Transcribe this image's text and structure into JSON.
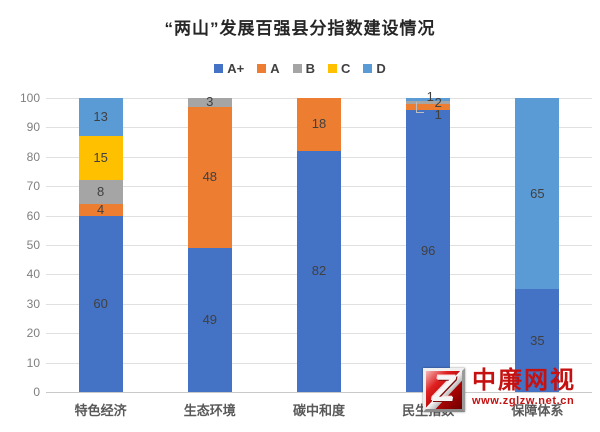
{
  "chart_data": {
    "type": "bar",
    "stacked": true,
    "title": "“两山”发展百强县分指数建设情况",
    "categories": [
      "特色经济",
      "生态环境",
      "碳中和度",
      "民生指数",
      "保障体系"
    ],
    "series": [
      {
        "name": "A+",
        "color": "#4472C4",
        "values": [
          60,
          49,
          82,
          96,
          35
        ]
      },
      {
        "name": "A",
        "color": "#ED7D31",
        "values": [
          4,
          48,
          18,
          2,
          0
        ]
      },
      {
        "name": "B",
        "color": "#A5A5A5",
        "values": [
          8,
          3,
          0,
          1,
          0
        ]
      },
      {
        "name": "C",
        "color": "#FFC000",
        "values": [
          15,
          0,
          0,
          0,
          0
        ]
      },
      {
        "name": "D",
        "color": "#5B9BD5",
        "values": [
          13,
          0,
          0,
          1,
          65
        ]
      }
    ],
    "ylim": [
      0,
      100
    ],
    "yticks": [
      0,
      10,
      20,
      30,
      40,
      50,
      60,
      70,
      80,
      90,
      100
    ],
    "grid": true,
    "legend_position": "top",
    "label_color": "#404040"
  },
  "watermark": {
    "logo_letter": "Z",
    "name": "中廉网视",
    "url": "www.zglzw.net.cn",
    "color": "#c61111"
  }
}
